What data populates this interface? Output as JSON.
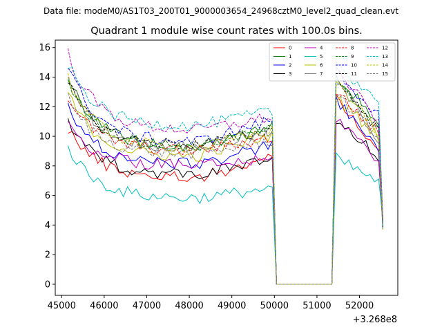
{
  "chart_data": {
    "type": "line",
    "suptitle": "Data file: modeM0/AS1T03_200T01_9000003654_24968cztM0_level2_quad_clean.evt",
    "title": "Quadrant 1 module wise count rates with 100.0s bins.",
    "xlabel": "",
    "ylabel": "",
    "x_offset_label": "+3.268e8",
    "xlim": [
      44850,
      52900
    ],
    "ylim": [
      -0.75,
      16.5
    ],
    "x_ticks": [
      45000,
      46000,
      47000,
      48000,
      49000,
      50000,
      51000,
      52000
    ],
    "x_tick_labels": [
      "45000",
      "46000",
      "47000",
      "48000",
      "49000",
      "50000",
      "51000",
      "52000"
    ],
    "y_ticks": [
      0,
      2,
      4,
      6,
      8,
      10,
      12,
      14,
      16
    ],
    "y_tick_labels": [
      "0",
      "2",
      "4",
      "6",
      "8",
      "10",
      "12",
      "14",
      "16"
    ],
    "legend": {
      "location": "upper right",
      "ncol": 4
    },
    "series": [
      {
        "name": "0",
        "color": "#ff0000",
        "dash": "solid",
        "start": 10.6,
        "plateau": 7.2,
        "end": 8.5,
        "resume": 12.8,
        "final": 8.8
      },
      {
        "name": "1",
        "color": "#008000",
        "dash": "solid",
        "start": 14.2,
        "plateau": 9.3,
        "end": 10.6,
        "resume": 14.2,
        "final": 10.8
      },
      {
        "name": "2",
        "color": "#0000ff",
        "dash": "solid",
        "start": 12.0,
        "plateau": 8.1,
        "end": 9.4,
        "resume": 12.4,
        "final": 9.1
      },
      {
        "name": "3",
        "color": "#000000",
        "dash": "solid",
        "start": 11.0,
        "plateau": 7.4,
        "end": 8.4,
        "resume": 11.0,
        "final": 8.6
      },
      {
        "name": "4",
        "color": "#bf00bf",
        "dash": "solid",
        "start": 10.9,
        "plateau": 8.0,
        "end": 8.4,
        "resume": 11.3,
        "final": 8.4
      },
      {
        "name": "5",
        "color": "#00bfbf",
        "dash": "solid",
        "start": 9.3,
        "plateau": 5.8,
        "end": 6.5,
        "resume": 8.5,
        "final": 6.9
      },
      {
        "name": "6",
        "color": "#bfbf00",
        "dash": "solid",
        "start": 13.0,
        "plateau": 8.6,
        "end": 10.1,
        "resume": 12.6,
        "final": 10.0
      },
      {
        "name": "7",
        "color": "#808080",
        "dash": "solid",
        "start": 14.0,
        "plateau": 9.2,
        "end": 10.3,
        "resume": 13.8,
        "final": 9.8
      },
      {
        "name": "8",
        "color": "#ff0000",
        "dash": "dashed",
        "start": 12.7,
        "plateau": 9.0,
        "end": 9.9,
        "resume": 13.0,
        "final": 10.2
      },
      {
        "name": "9",
        "color": "#008000",
        "dash": "dashed",
        "start": 13.8,
        "plateau": 9.3,
        "end": 10.5,
        "resume": 13.6,
        "final": 10.7
      },
      {
        "name": "10",
        "color": "#0000ff",
        "dash": "dashed",
        "start": 14.8,
        "plateau": 9.6,
        "end": 11.1,
        "resume": 14.4,
        "final": 11.4
      },
      {
        "name": "11",
        "color": "#000000",
        "dash": "dashed",
        "start": 13.6,
        "plateau": 9.4,
        "end": 10.4,
        "resume": 13.9,
        "final": 10.4
      },
      {
        "name": "12",
        "color": "#bf00bf",
        "dash": "dashed",
        "start": 15.6,
        "plateau": 10.4,
        "end": 11.3,
        "resume": 14.5,
        "final": 11.0
      },
      {
        "name": "13",
        "color": "#00bfbf",
        "dash": "dashed",
        "start": 14.9,
        "plateau": 10.7,
        "end": 11.7,
        "resume": 14.9,
        "final": 12.4
      },
      {
        "name": "14",
        "color": "#bfbf00",
        "dash": "dashed",
        "start": 14.0,
        "plateau": 9.2,
        "end": 10.4,
        "resume": 13.8,
        "final": 10.2
      },
      {
        "name": "15",
        "color": "#808080",
        "dash": "dashed",
        "start": 12.6,
        "plateau": 8.8,
        "end": 9.7,
        "resume": 12.9,
        "final": 9.9
      }
    ]
  }
}
